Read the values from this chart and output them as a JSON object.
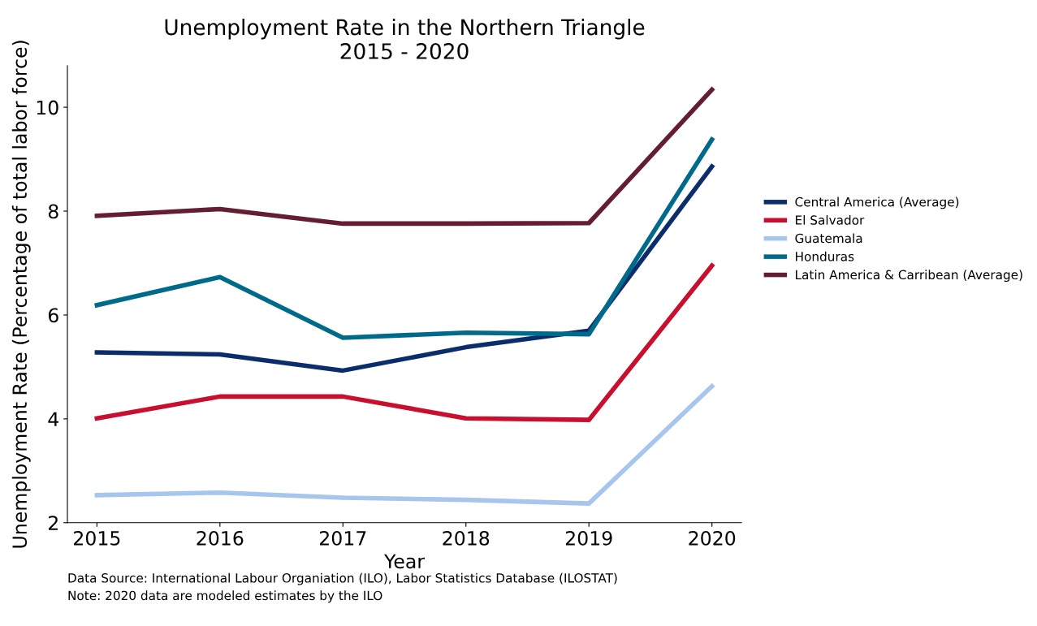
{
  "chart_data": {
    "type": "line",
    "title": "Unemployment Rate in the Northern Triangle\n2015 - 2020",
    "xlabel": "Year",
    "ylabel": "Unemployment Rate (Percentage of total labor force)",
    "x": [
      2015,
      2016,
      2017,
      2018,
      2019,
      2020
    ],
    "series": [
      {
        "name": "Central America (Average)",
        "color": "#0b2d6b",
        "values": [
          5.28,
          5.24,
          4.93,
          5.38,
          5.7,
          8.86
        ]
      },
      {
        "name": "El Salvador",
        "color": "#c8102e",
        "values": [
          4.01,
          4.43,
          4.43,
          4.01,
          3.98,
          6.95
        ]
      },
      {
        "name": "Guatemala",
        "color": "#a7c6ed",
        "values": [
          2.53,
          2.58,
          2.48,
          2.44,
          2.37,
          4.63
        ]
      },
      {
        "name": "Honduras",
        "color": "#006a8a",
        "values": [
          6.19,
          6.73,
          5.56,
          5.66,
          5.63,
          9.38
        ]
      },
      {
        "name": "Latin America & Carribean (Average)",
        "color": "#651d32",
        "values": [
          7.91,
          8.04,
          7.76,
          7.76,
          7.77,
          10.34
        ]
      }
    ],
    "xlim": [
      2014.76,
      2020.24
    ],
    "xticks": [
      2015,
      2016,
      2017,
      2018,
      2019,
      2020
    ],
    "ylim": [
      2,
      10.8
    ],
    "yticks": [
      2,
      4,
      6,
      8,
      10
    ],
    "grid": false,
    "legend": "right",
    "marker": "none",
    "line_style": "solid",
    "annotations": [
      "Data Source: International Labour Organiation (ILO), Labor Statistics Database (ILOSTAT)",
      "Note: 2020 data are modeled estimates by the ILO"
    ]
  }
}
